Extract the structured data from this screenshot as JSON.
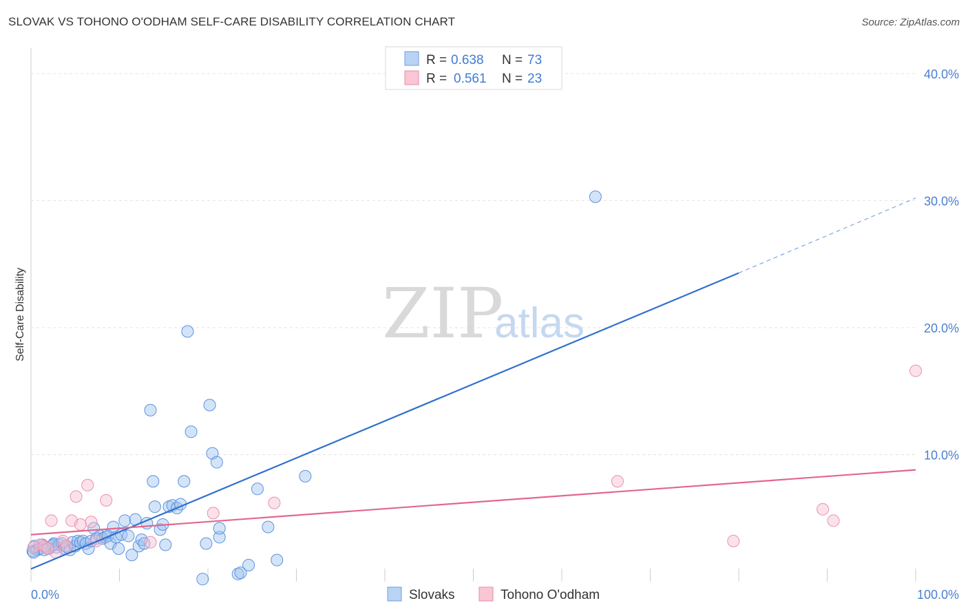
{
  "title": "SLOVAK VS TOHONO O'ODHAM SELF-CARE DISABILITY CORRELATION CHART",
  "source": "Source: ZipAtlas.com",
  "watermark": {
    "part1": "ZIP",
    "part2": "atlas"
  },
  "legend": {
    "r_label": "R =",
    "n_label": "N =",
    "series": [
      {
        "name": "Slovaks",
        "r": "0.638",
        "n": "73"
      },
      {
        "name": "Tohono O'odham",
        "r": "0.561",
        "n": "23"
      }
    ]
  },
  "chart_data": {
    "type": "scatter",
    "title": "SLOVAK VS TOHONO O'ODHAM SELF-CARE DISABILITY CORRELATION CHART",
    "xlabel": "",
    "ylabel": "Self-Care Disability",
    "xlim": [
      0,
      100
    ],
    "ylim": [
      0,
      42
    ],
    "x_tick_labels": [
      "0.0%",
      "100.0%"
    ],
    "y_ticks": [
      10,
      20,
      30,
      40
    ],
    "y_tick_labels": [
      "10.0%",
      "20.0%",
      "30.0%",
      "40.0%"
    ],
    "grid": true,
    "colors": {
      "Slovaks": "#4a8ae0",
      "Tohono O'odham": "#ef7fa0",
      "axis_text": "#4a7fd0"
    },
    "series": [
      {
        "name": "Slovaks",
        "regression": {
          "x0": 0,
          "y0": 1.0,
          "x1": 80,
          "y1": 24.3,
          "dashed_to_x": 100,
          "dashed_to_y": 30.2
        },
        "points": [
          [
            0.2,
            2.4
          ],
          [
            0.4,
            2.8
          ],
          [
            0.7,
            2.5
          ],
          [
            1.0,
            2.6
          ],
          [
            1.3,
            2.9
          ],
          [
            1.7,
            2.7
          ],
          [
            2.0,
            2.6
          ],
          [
            2.3,
            2.8
          ],
          [
            2.6,
            3.0
          ],
          [
            2.9,
            2.7
          ],
          [
            3.2,
            2.9
          ],
          [
            3.5,
            3.0
          ],
          [
            3.8,
            2.6
          ],
          [
            4.1,
            2.7
          ],
          [
            4.4,
            2.5
          ],
          [
            4.7,
            3.1
          ],
          [
            5.0,
            2.8
          ],
          [
            5.3,
            3.2
          ],
          [
            5.6,
            3.1
          ],
          [
            5.9,
            3.2
          ],
          [
            6.2,
            3.0
          ],
          [
            6.5,
            2.6
          ],
          [
            6.8,
            3.2
          ],
          [
            7.1,
            4.2
          ],
          [
            7.4,
            3.4
          ],
          [
            7.8,
            3.6
          ],
          [
            8.1,
            3.4
          ],
          [
            8.4,
            3.5
          ],
          [
            8.7,
            3.6
          ],
          [
            9.0,
            3.0
          ],
          [
            9.3,
            4.3
          ],
          [
            9.6,
            3.5
          ],
          [
            9.9,
            2.6
          ],
          [
            10.2,
            3.7
          ],
          [
            10.6,
            4.8
          ],
          [
            11.0,
            3.6
          ],
          [
            11.4,
            2.1
          ],
          [
            11.8,
            4.9
          ],
          [
            12.2,
            2.8
          ],
          [
            12.5,
            3.3
          ],
          [
            12.8,
            3.0
          ],
          [
            13.1,
            4.6
          ],
          [
            13.5,
            13.5
          ],
          [
            13.8,
            7.9
          ],
          [
            14.0,
            5.9
          ],
          [
            14.6,
            4.1
          ],
          [
            14.9,
            4.5
          ],
          [
            15.2,
            2.9
          ],
          [
            15.6,
            5.9
          ],
          [
            16.0,
            6.0
          ],
          [
            16.5,
            5.8
          ],
          [
            16.9,
            6.1
          ],
          [
            17.3,
            7.9
          ],
          [
            17.7,
            19.7
          ],
          [
            18.1,
            11.8
          ],
          [
            19.4,
            0.2
          ],
          [
            19.8,
            3.0
          ],
          [
            20.2,
            13.9
          ],
          [
            20.5,
            10.1
          ],
          [
            21.0,
            9.4
          ],
          [
            21.3,
            3.5
          ],
          [
            21.3,
            4.2
          ],
          [
            23.4,
            0.6
          ],
          [
            23.7,
            0.7
          ],
          [
            24.6,
            1.3
          ],
          [
            25.6,
            7.3
          ],
          [
            26.8,
            4.3
          ],
          [
            27.8,
            1.7
          ],
          [
            31.0,
            8.3
          ],
          [
            63.8,
            30.3
          ],
          [
            0.3,
            2.3
          ],
          [
            1.5,
            2.5
          ],
          [
            2.5,
            2.9
          ]
        ]
      },
      {
        "name": "Tohono O'odham",
        "regression": {
          "x0": 0,
          "y0": 3.7,
          "x1": 100,
          "y1": 8.8
        },
        "points": [
          [
            0.3,
            2.7
          ],
          [
            1.0,
            2.9
          ],
          [
            1.5,
            2.8
          ],
          [
            2.3,
            4.8
          ],
          [
            2.8,
            2.3
          ],
          [
            3.6,
            3.2
          ],
          [
            4.6,
            4.8
          ],
          [
            5.1,
            6.7
          ],
          [
            5.6,
            4.5
          ],
          [
            6.4,
            7.6
          ],
          [
            6.8,
            4.7
          ],
          [
            7.4,
            3.2
          ],
          [
            8.5,
            6.4
          ],
          [
            13.5,
            3.1
          ],
          [
            20.6,
            5.4
          ],
          [
            27.5,
            6.2
          ],
          [
            66.3,
            7.9
          ],
          [
            79.4,
            3.2
          ],
          [
            89.5,
            5.7
          ],
          [
            90.7,
            4.8
          ],
          [
            100,
            16.6
          ],
          [
            1.9,
            2.6
          ],
          [
            4.0,
            2.8
          ]
        ]
      }
    ]
  }
}
